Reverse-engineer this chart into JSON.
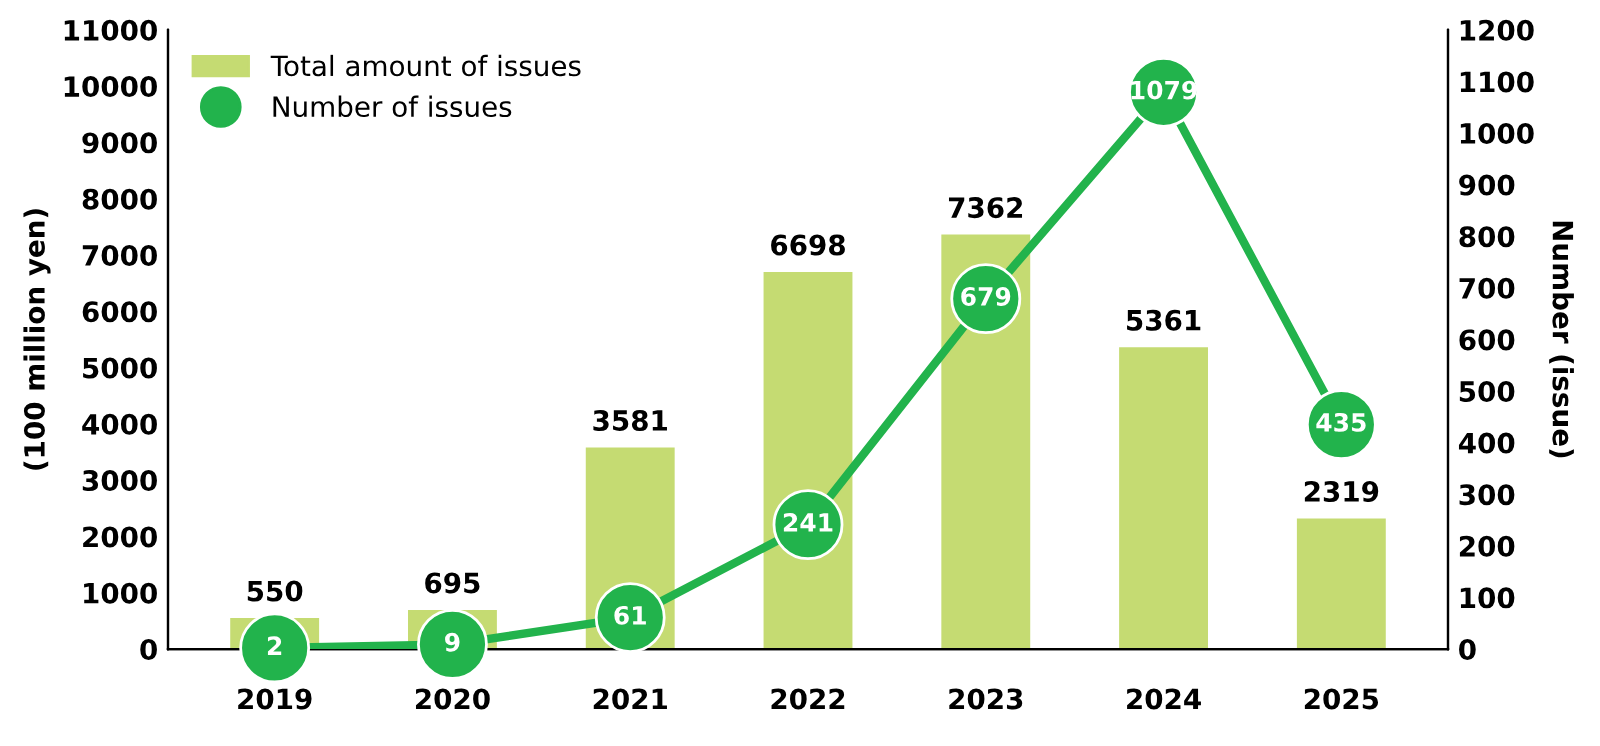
{
  "chart_data": {
    "type": "bar",
    "categories": [
      "2019",
      "2020",
      "2021",
      "2022",
      "2023",
      "2024",
      "2025"
    ],
    "series": [
      {
        "name": "Total amount of issues",
        "color": "#c5db72",
        "values": [
          550,
          695,
          3581,
          6698,
          7362,
          5361,
          2319
        ]
      },
      {
        "name": "Number of issues",
        "type": "line",
        "axis": "y2",
        "color": "#22b34c",
        "values": [
          2,
          9,
          61,
          241,
          679,
          1079,
          435
        ]
      }
    ],
    "ylabel": "(100 million yen)",
    "y2label": "Number (issue)",
    "ylim": [
      0,
      11000
    ],
    "yticks": [
      0,
      1000,
      2000,
      3000,
      4000,
      5000,
      6000,
      7000,
      8000,
      9000,
      10000,
      11000
    ],
    "y2lim": [
      0,
      1200
    ],
    "y2ticks": [
      0,
      100,
      200,
      300,
      400,
      500,
      600,
      700,
      800,
      900,
      1000,
      1100,
      1200
    ],
    "data_labels": true,
    "legend": "top left",
    "marker": "circle",
    "line_style": "solid",
    "grid": false
  }
}
